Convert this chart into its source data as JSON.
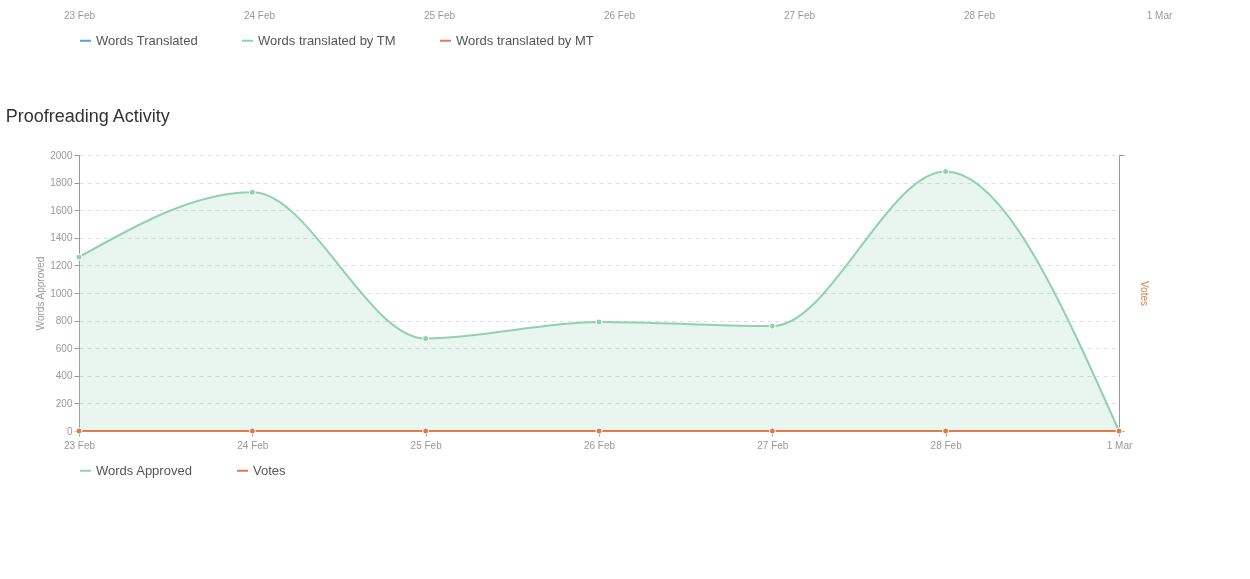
{
  "chart_data": [
    {
      "type": "other",
      "categories": [
        "23 Feb",
        "24 Feb",
        "25 Feb",
        "26 Feb",
        "27 Feb",
        "28 Feb",
        "1 Mar"
      ],
      "legend": "bottom",
      "series": [
        {
          "name": "Words Translated",
          "color": "#5b9bd5",
          "values": [
            null,
            null,
            null,
            null,
            null,
            null,
            null
          ]
        },
        {
          "name": "Words translated by TM",
          "color": "#8fd1b0",
          "values": [
            null,
            null,
            null,
            null,
            null,
            null,
            null
          ]
        },
        {
          "name": "Words translated by MT",
          "color": "#e07b4a",
          "values": [
            null,
            null,
            null,
            null,
            null,
            null,
            null
          ]
        }
      ]
    },
    {
      "type": "line",
      "title": "Proofreading Activity",
      "ylabel": "Words Approved",
      "y2label": "Votes",
      "categories": [
        "23 Feb",
        "24 Feb",
        "25 Feb",
        "26 Feb",
        "27 Feb",
        "28 Feb",
        "1 Mar"
      ],
      "ylim": [
        0,
        2000
      ],
      "yticks": [
        0,
        200,
        400,
        600,
        800,
        1000,
        1200,
        1400,
        1600,
        1800,
        2000
      ],
      "grid": "y",
      "legend": "bottom",
      "marker": "circle",
      "series": [
        {
          "name": "Words Approved",
          "type": "area",
          "color": "#8fd1b0",
          "values": [
            1260,
            1730,
            670,
            790,
            760,
            1880,
            0
          ]
        },
        {
          "name": "Votes",
          "type": "line",
          "color": "#e07b4a",
          "values": [
            0,
            0,
            0,
            0,
            0,
            0,
            0
          ]
        }
      ]
    }
  ]
}
